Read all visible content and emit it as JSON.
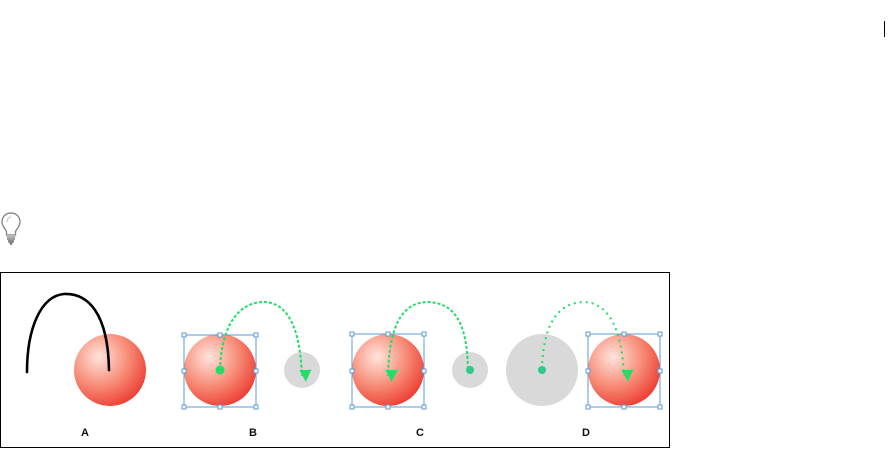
{
  "panels": [
    {
      "label": "A"
    },
    {
      "label": "B"
    },
    {
      "label": "C"
    },
    {
      "label": "D"
    }
  ],
  "icons": {
    "tip": "lightbulb-icon"
  },
  "colors": {
    "ball_light": "#ffe4dc",
    "ball_dark": "#ef3a32",
    "shadow_ball": "#d9d9d9",
    "motion_path": "#22dd66",
    "selection": "#5b9bd5",
    "stroke_line": "#000000"
  }
}
